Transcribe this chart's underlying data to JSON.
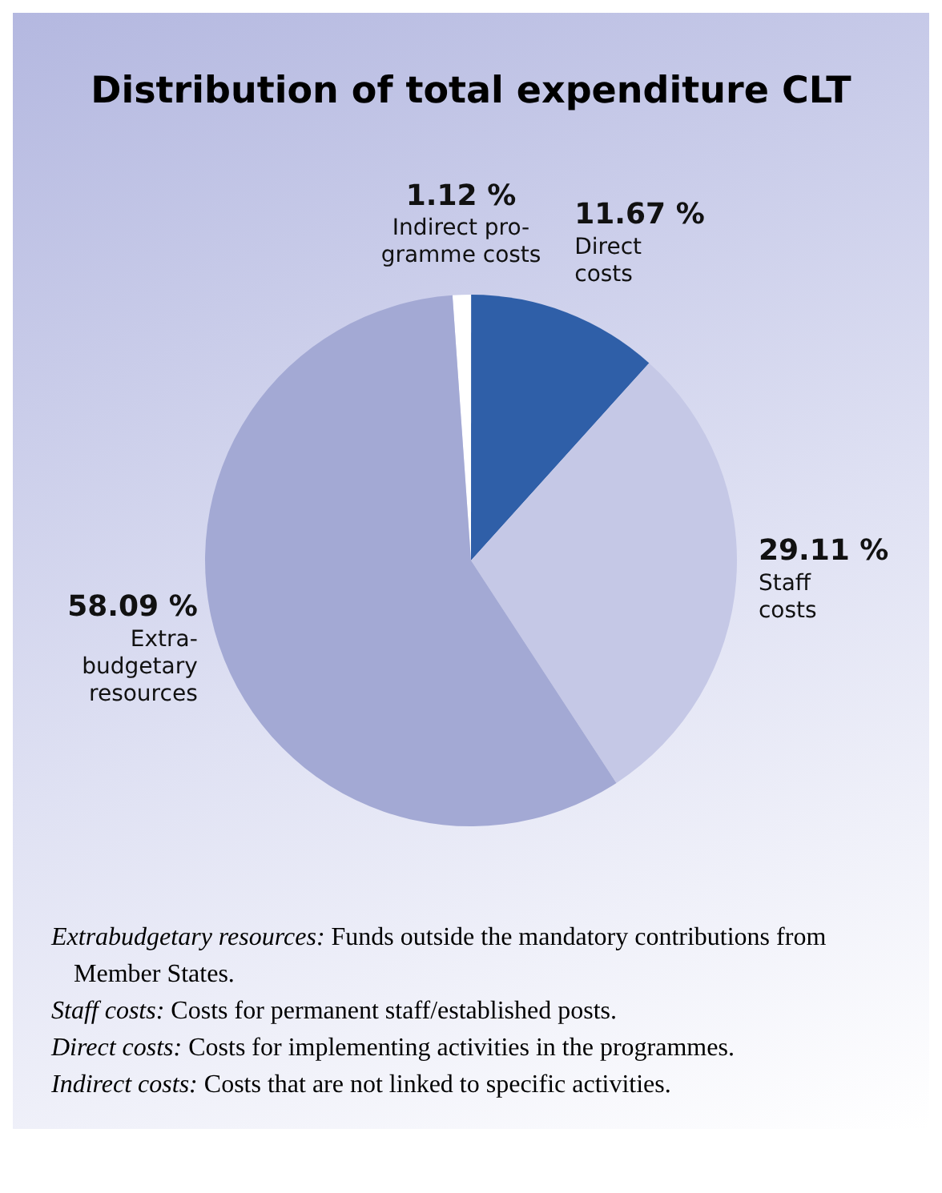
{
  "chart_data": {
    "type": "pie",
    "title": "Distribution of total expenditure CLT",
    "categories": [
      "Indirect pro-\ngramme costs",
      "Direct\ncosts",
      "Staff\ncosts",
      "Extra-\nbudgetary\nresources"
    ],
    "values": [
      1.12,
      11.67,
      29.11,
      58.09
    ],
    "value_labels": [
      "1.12 %",
      "11.67 %",
      "29.11 %",
      "58.09 %"
    ],
    "colors": [
      "#ffffff",
      "#2f5fa8",
      "#c5c8e6",
      "#a3a9d4"
    ],
    "annotations": [
      "Extrabudgetary resources: Funds outside the mandatory contributions from Member States.",
      "Staff costs: Costs for permanent staff/established posts.",
      "Direct costs: Costs for implementing activities in the programmes.",
      "Indirect costs: Costs that are not linked to specific activities."
    ]
  }
}
